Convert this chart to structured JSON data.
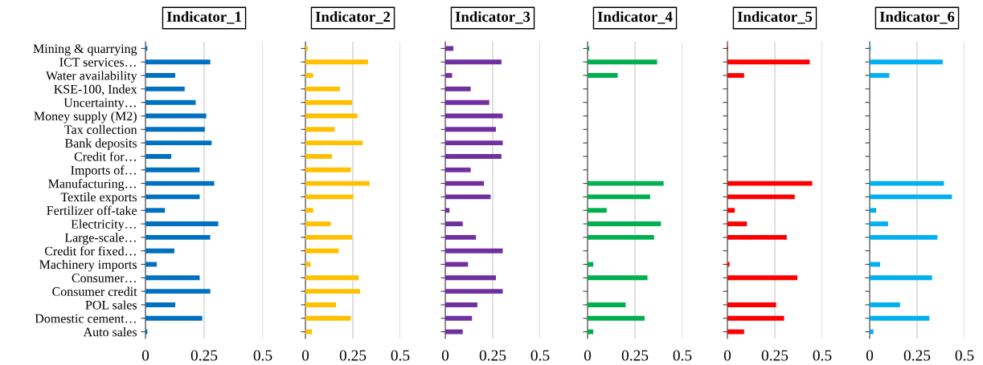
{
  "chart_data": [
    {
      "type": "bar",
      "orientation": "horizontal",
      "title": "Indicator_1",
      "grid": "x",
      "xlim": [
        0,
        0.5
      ],
      "xticks": [
        0,
        0.25,
        0.5
      ],
      "categories": [
        "Mining & quarrying",
        "ICT services…",
        "Water availability",
        "KSE-100, Index",
        "Uncertainty…",
        "Money supply (M2)",
        "Tax collection",
        "Bank deposits",
        "Credit for…",
        "Imports of…",
        "Manufacturing…",
        "Textile exports",
        "Fertilizer off-take",
        "Electricity…",
        "Large-scale…",
        "Credit for fixed…",
        "Machinery imports",
        "Consumer…",
        "Consumer credit",
        "POL sales",
        "Domestic cement…",
        "Auto sales"
      ],
      "series": [
        {
          "color": "#0070c0",
          "values": [
            0.008,
            0.276,
            0.127,
            0.167,
            0.214,
            0.259,
            0.253,
            0.282,
            0.11,
            0.231,
            0.293,
            0.231,
            0.083,
            0.31,
            0.276,
            0.123,
            0.048,
            0.231,
            0.276,
            0.127,
            0.242,
            0.008
          ]
        }
      ]
    },
    {
      "type": "bar",
      "orientation": "horizontal",
      "title": "Indicator_2",
      "grid": "x",
      "xlim": [
        0,
        0.5
      ],
      "xticks": [
        0,
        0.25,
        0.5
      ],
      "tick_labels": "x",
      "categories": [
        null,
        null,
        null,
        null,
        null,
        null,
        null,
        null,
        null,
        null,
        null,
        null,
        null,
        null,
        null,
        null,
        null,
        null,
        null,
        null,
        null,
        null
      ],
      "series": [
        {
          "color": "#ffc000",
          "values": [
            0.013,
            0.33,
            0.041,
            0.182,
            0.246,
            0.274,
            0.154,
            0.302,
            0.14,
            0.239,
            0.338,
            0.253,
            0.041,
            0.133,
            0.246,
            0.175,
            0.027,
            0.281,
            0.288,
            0.161,
            0.239,
            0.034
          ]
        }
      ]
    },
    {
      "type": "bar",
      "orientation": "horizontal",
      "title": "Indicator_3",
      "grid": "x",
      "xlim": [
        0,
        0.5
      ],
      "xticks": [
        0,
        0.25,
        0.5
      ],
      "tick_labels": "x",
      "categories": [
        null,
        null,
        null,
        null,
        null,
        null,
        null,
        null,
        null,
        null,
        null,
        null,
        null,
        null,
        null,
        null,
        null,
        null,
        null,
        null,
        null,
        null
      ],
      "series": [
        {
          "color": "#7030a0",
          "values": [
            0.043,
            0.296,
            0.036,
            0.134,
            0.232,
            0.303,
            0.267,
            0.303,
            0.296,
            0.134,
            0.204,
            0.239,
            0.022,
            0.092,
            0.162,
            0.303,
            0.12,
            0.267,
            0.303,
            0.169,
            0.141,
            0.092
          ]
        }
      ]
    },
    {
      "type": "bar",
      "orientation": "horizontal",
      "title": "Indicator_4",
      "grid": "x",
      "xlim": [
        0,
        0.5
      ],
      "xticks": [
        0,
        0.25,
        0.5
      ],
      "tick_labels": "x",
      "categories": [
        null,
        null,
        null,
        null,
        null,
        null,
        null,
        null,
        null,
        null,
        null,
        null,
        null,
        null,
        null,
        null,
        null,
        null,
        null,
        null,
        null,
        null
      ],
      "series": [
        {
          "color": "#00b050",
          "values": [
            0.009,
            0.367,
            0.159,
            null,
            null,
            null,
            null,
            null,
            null,
            null,
            0.401,
            0.33,
            0.101,
            0.387,
            0.351,
            null,
            0.03,
            0.316,
            null,
            0.201,
            0.301,
            0.03
          ]
        }
      ]
    },
    {
      "type": "bar",
      "orientation": "horizontal",
      "title": "Indicator_5",
      "grid": "x",
      "xlim": [
        0,
        0.5
      ],
      "xticks": [
        0,
        0.25,
        0.5
      ],
      "tick_labels": "x",
      "categories": [
        null,
        null,
        null,
        null,
        null,
        null,
        null,
        null,
        null,
        null,
        null,
        null,
        null,
        null,
        null,
        null,
        null,
        null,
        null,
        null,
        null,
        null
      ],
      "series": [
        {
          "color": "#ff0000",
          "values": [
            0.004,
            0.434,
            0.088,
            null,
            null,
            null,
            null,
            null,
            null,
            null,
            0.447,
            0.355,
            0.039,
            0.103,
            0.313,
            null,
            0.011,
            0.369,
            null,
            0.257,
            0.299,
            0.088
          ]
        }
      ]
    },
    {
      "type": "bar",
      "orientation": "horizontal",
      "title": "Indicator_6",
      "grid": "x",
      "xlim": [
        0,
        0.5
      ],
      "xticks": [
        0,
        0.25,
        0.5
      ],
      "tick_labels": "x",
      "categories": [
        null,
        null,
        null,
        null,
        null,
        null,
        null,
        null,
        null,
        null,
        null,
        null,
        null,
        null,
        null,
        null,
        null,
        null,
        null,
        null,
        null,
        null
      ],
      "series": [
        {
          "color": "#00b0f0",
          "values": [
            0.006,
            0.385,
            0.104,
            null,
            null,
            null,
            null,
            null,
            null,
            null,
            0.392,
            0.434,
            0.034,
            0.097,
            0.357,
            null,
            0.055,
            0.329,
            null,
            0.16,
            0.315,
            0.02
          ]
        }
      ]
    }
  ]
}
